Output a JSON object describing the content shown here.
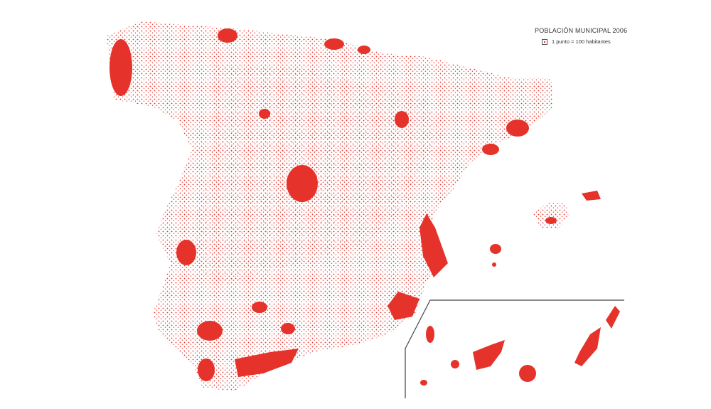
{
  "legend": {
    "title": "POBLACIÓN MUNICIPAL 2006",
    "scale_text": "1 punto = 100 habitantes"
  },
  "colors": {
    "dot": "#e5322a",
    "background": "#ffffff",
    "inset_frame": "#444444"
  },
  "map": {
    "regions": [
      "peninsula",
      "balearic-islands",
      "canary-islands"
    ]
  }
}
